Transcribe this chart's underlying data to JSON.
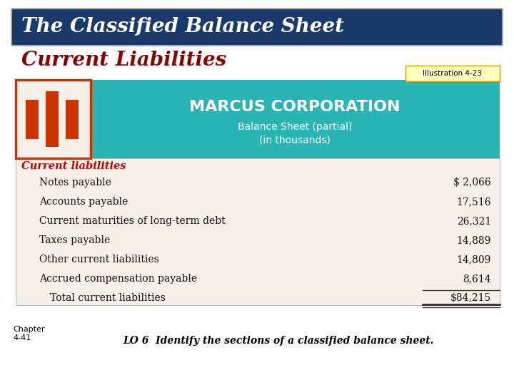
{
  "title_bar_text": "The Classified Balance Sheet",
  "title_bar_bg": "#1a3a6b",
  "title_bar_fg": "#ffffff",
  "subtitle_text": "Current Liabilities",
  "subtitle_color": "#8b0000",
  "illustration_text": "Illustration 4-23",
  "corp_name": "MARCUS CORPORATION",
  "corp_sub1": "Balance Sheet (partial)",
  "corp_sub2": "(in thousands)",
  "header_bg": "#2ab5b5",
  "header_fg": "#ffffff",
  "table_bg": "#f5f0e8",
  "section_label": "Current liabilities",
  "section_label_color": "#cc0000",
  "line_items": [
    {
      "label": "Notes payable",
      "value": "$ 2,066",
      "indent": true
    },
    {
      "label": "Accounts payable",
      "value": "17,516",
      "indent": true
    },
    {
      "label": "Current maturities of long-term debt",
      "value": "26,321",
      "indent": true
    },
    {
      "label": "Taxes payable",
      "value": "14,889",
      "indent": true
    },
    {
      "label": "Other current liabilities",
      "value": "14,809",
      "indent": true
    },
    {
      "label": "Accrued compensation payable",
      "value": "8,614",
      "indent": true
    }
  ],
  "total_label": "Total current liabilities",
  "total_value": "$84,215",
  "logo_border_color": "#cc3300",
  "logo_fill": "#f5f0e8",
  "logo_bar_color": "#cc3300",
  "footer_chapter": "Chapter\n4-41",
  "footer_lo": "LO 6  Identify the sections of a classified balance sheet.",
  "footer_color": "#000000",
  "bg_color": "#ffffff"
}
